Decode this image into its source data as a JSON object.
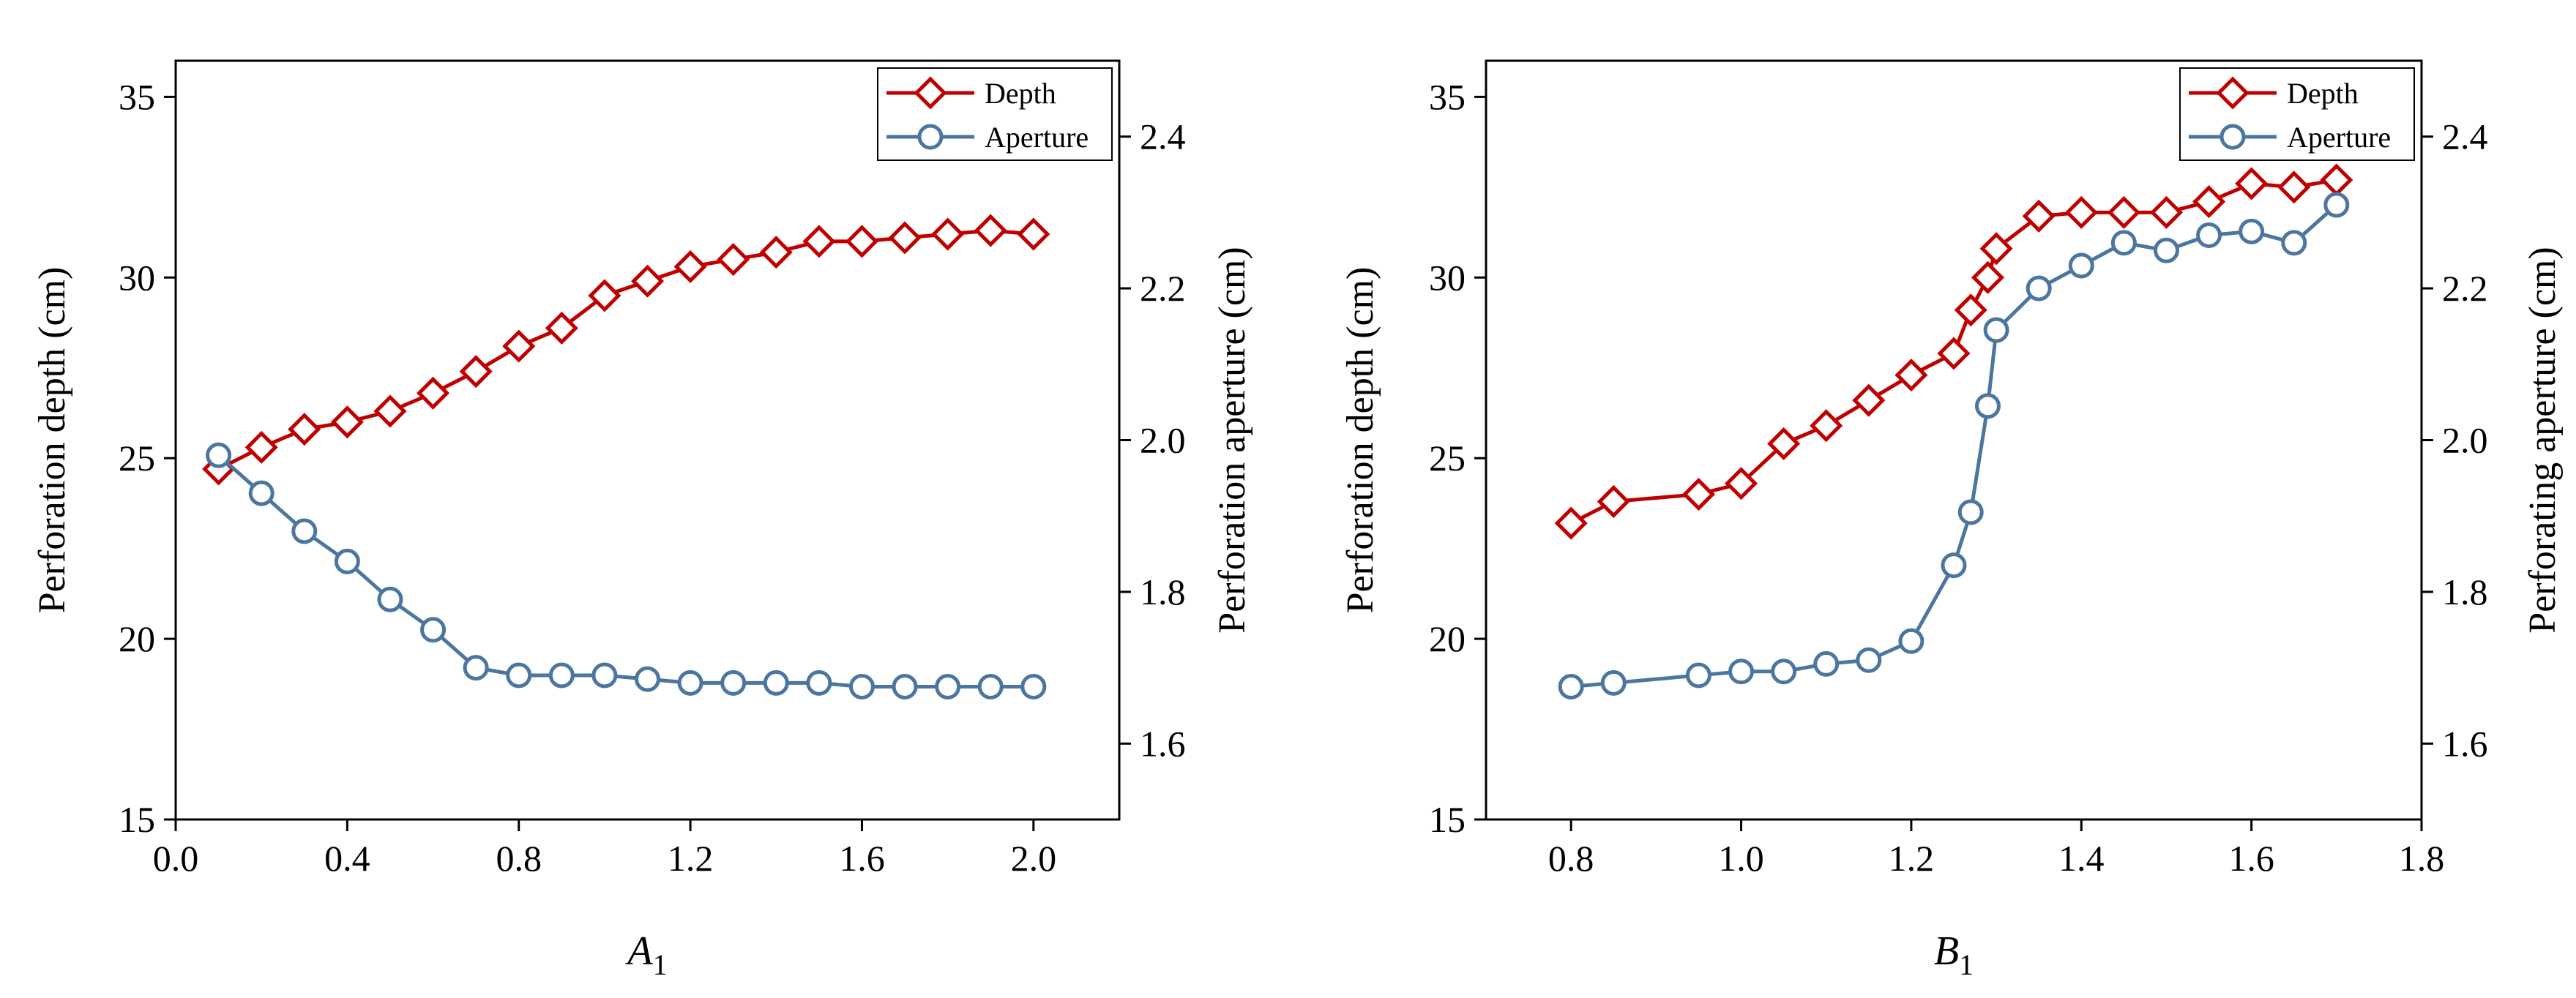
{
  "colors": {
    "depth": "#C00000",
    "aperture": "#4A76A0",
    "axis": "#000000",
    "background": "#FFFFFF"
  },
  "chart_data": [
    {
      "type": "line",
      "title": "",
      "xlabel": {
        "symbol": "A",
        "subscript": "1"
      },
      "ylabel": "Perforation depth (cm)",
      "y2label": "Perforation aperture (cm)",
      "xlim": [
        0.0,
        2.2
      ],
      "ylim": [
        15,
        36
      ],
      "y2lim": [
        1.5,
        2.5
      ],
      "xticks": [
        0.0,
        0.4,
        0.8,
        1.2,
        1.6,
        2.0
      ],
      "xtick_labels": [
        "0.0",
        "0.4",
        "0.8",
        "1.2",
        "1.6",
        "2.0"
      ],
      "yticks": [
        15,
        20,
        25,
        30,
        35
      ],
      "ytick_labels": [
        "15",
        "20",
        "25",
        "30",
        "35"
      ],
      "y2ticks": [
        1.6,
        1.8,
        2.0,
        2.2,
        2.4
      ],
      "y2tick_labels": [
        "1.6",
        "1.8",
        "2.0",
        "2.2",
        "2.4"
      ],
      "legend": {
        "position": "top-right",
        "entries": [
          "Depth",
          "Aperture"
        ]
      },
      "series": [
        {
          "name": "Depth",
          "axis": "left",
          "marker": "diamond",
          "x": [
            0.1,
            0.2,
            0.3,
            0.4,
            0.5,
            0.6,
            0.7,
            0.8,
            0.9,
            1.0,
            1.1,
            1.2,
            1.3,
            1.4,
            1.5,
            1.6,
            1.7,
            1.8,
            1.9,
            2.0
          ],
          "values": [
            24.7,
            25.3,
            25.8,
            26.0,
            26.3,
            26.8,
            27.4,
            28.1,
            28.6,
            29.5,
            29.9,
            30.3,
            30.5,
            30.7,
            31.0,
            31.0,
            31.1,
            31.2,
            31.3,
            31.2
          ]
        },
        {
          "name": "Aperture",
          "axis": "right",
          "marker": "circle",
          "x": [
            0.1,
            0.2,
            0.3,
            0.4,
            0.5,
            0.6,
            0.7,
            0.8,
            0.9,
            1.0,
            1.1,
            1.2,
            1.3,
            1.4,
            1.5,
            1.6,
            1.7,
            1.8,
            1.9,
            2.0
          ],
          "values": [
            1.98,
            1.93,
            1.88,
            1.84,
            1.79,
            1.75,
            1.7,
            1.69,
            1.69,
            1.69,
            1.685,
            1.68,
            1.68,
            1.68,
            1.68,
            1.675,
            1.675,
            1.675,
            1.675,
            1.675
          ]
        }
      ]
    },
    {
      "type": "line",
      "title": "",
      "xlabel": {
        "symbol": "B",
        "subscript": "1"
      },
      "ylabel": "Perforation depth (cm)",
      "y2label": "Perforating aperture (cm)",
      "xlim": [
        0.7,
        1.8
      ],
      "ylim": [
        15,
        36
      ],
      "y2lim": [
        1.5,
        2.5
      ],
      "xticks": [
        0.8,
        1.0,
        1.2,
        1.4,
        1.6,
        1.8
      ],
      "xtick_labels": [
        "0.8",
        "1.0",
        "1.2",
        "1.4",
        "1.6",
        "1.8"
      ],
      "yticks": [
        15,
        20,
        25,
        30,
        35
      ],
      "ytick_labels": [
        "15",
        "20",
        "25",
        "30",
        "35"
      ],
      "y2ticks": [
        1.6,
        1.8,
        2.0,
        2.2,
        2.4
      ],
      "y2tick_labels": [
        "1.6",
        "1.8",
        "2.0",
        "2.2",
        "2.4"
      ],
      "legend": {
        "position": "top-right",
        "entries": [
          "Depth",
          "Aperture"
        ]
      },
      "series": [
        {
          "name": "Depth",
          "axis": "left",
          "marker": "diamond",
          "x": [
            0.8,
            0.85,
            0.95,
            1.0,
            1.05,
            1.1,
            1.15,
            1.2,
            1.25,
            1.27,
            1.29,
            1.3,
            1.35,
            1.4,
            1.45,
            1.5,
            1.55,
            1.6,
            1.65,
            1.7
          ],
          "values": [
            23.2,
            23.8,
            24.0,
            24.3,
            25.4,
            25.9,
            26.6,
            27.3,
            27.9,
            29.1,
            30.0,
            30.8,
            31.7,
            31.8,
            31.8,
            31.8,
            32.1,
            32.6,
            32.5,
            32.7
          ]
        },
        {
          "name": "Aperture",
          "axis": "right",
          "marker": "circle",
          "x": [
            0.8,
            0.85,
            0.95,
            1.0,
            1.05,
            1.1,
            1.15,
            1.2,
            1.25,
            1.27,
            1.29,
            1.3,
            1.35,
            1.4,
            1.45,
            1.5,
            1.55,
            1.6,
            1.65,
            1.7
          ],
          "values": [
            1.675,
            1.68,
            1.69,
            1.695,
            1.695,
            1.705,
            1.71,
            1.735,
            1.835,
            1.905,
            2.045,
            2.145,
            2.2,
            2.23,
            2.26,
            2.25,
            2.27,
            2.275,
            2.26,
            2.31
          ]
        }
      ]
    }
  ]
}
